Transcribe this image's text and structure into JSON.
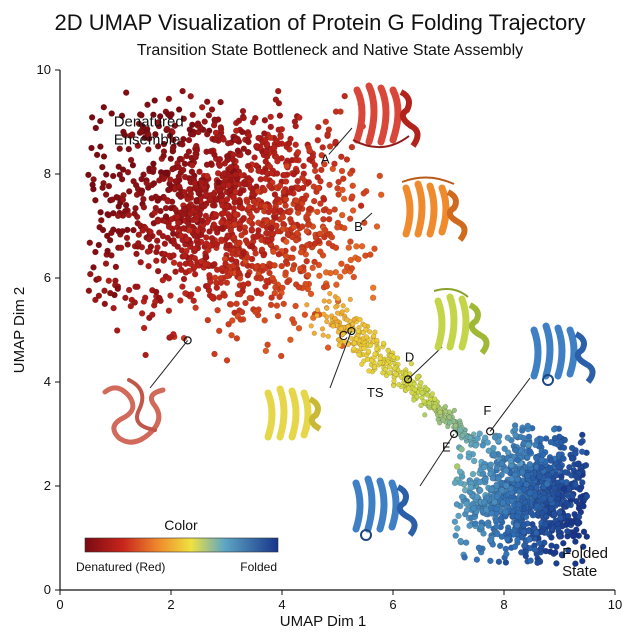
{
  "chart_data": {
    "type": "scatter",
    "title": "2D UMAP Visualization of Protein G Folding Trajectory",
    "subtitle": "Transition State Bottleneck and Native State Assembly",
    "xlabel": "UMAP Dim 1",
    "ylabel": "UMAP Dim 2",
    "xlim": [
      0,
      10
    ],
    "ylim": [
      0,
      10
    ],
    "xticks": [
      "0",
      "2",
      "4",
      "6",
      "8",
      "10"
    ],
    "yticks": [
      "0",
      "2",
      "4",
      "6",
      "8",
      "10"
    ],
    "grid": false,
    "colormap": [
      "#7a0a12",
      "#b81f1a",
      "#e0561f",
      "#f29a30",
      "#ecd23a",
      "#c9d948",
      "#5fa7c4",
      "#2e6db5",
      "#17358a"
    ],
    "regions": [
      {
        "label": "Denatured\nEnsemble",
        "x": 1.4,
        "y": 8.8
      },
      {
        "label": "Folded\nState",
        "x": 9.3,
        "y": 0.5
      }
    ],
    "annotations": [
      {
        "label": "A",
        "x": 4.7,
        "y": 8.3
      },
      {
        "label": "B",
        "x": 5.3,
        "y": 7.0
      },
      {
        "label": "C",
        "x": 5.2,
        "y": 5.0
      },
      {
        "label": "D",
        "x": 6.25,
        "y": 4.05
      },
      {
        "label": "TS",
        "x": 5.8,
        "y": 3.9
      },
      {
        "label": "E",
        "x": 7.1,
        "y": 3.05
      },
      {
        "label": "F",
        "x": 7.7,
        "y": 3.1
      }
    ],
    "colorbar": {
      "title": "Color",
      "low_label": "Denatured (Red)",
      "high_label": "Folded"
    }
  }
}
